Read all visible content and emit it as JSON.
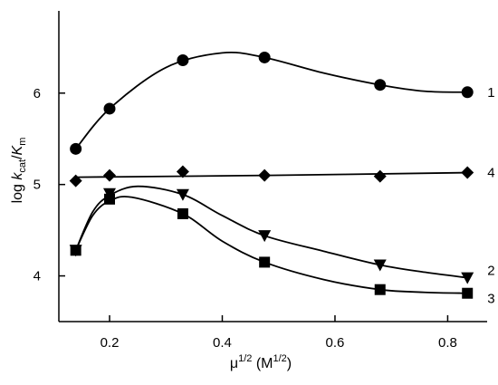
{
  "chart_data": {
    "type": "line",
    "title": "",
    "xlabel": {
      "base": "μ",
      "sup": "1/2",
      "unit_open": " (M",
      "unit_sup": "1/2",
      "unit_close": ")"
    },
    "ylabel": {
      "prefix": "log ",
      "k": "k",
      "k_sub": "cat",
      "slash": "/",
      "K": "K",
      "K_sub": "m"
    },
    "xlim": [
      0.11,
      0.87
    ],
    "ylim": [
      3.5,
      6.9
    ],
    "xticks": [
      0.2,
      0.4,
      0.6,
      0.8
    ],
    "xtick_labels": [
      "0.2",
      "0.4",
      "0.6",
      "0.8"
    ],
    "yticks": [
      4,
      5,
      6
    ],
    "ytick_labels": [
      "4",
      "5",
      "6"
    ],
    "grid": false,
    "series": [
      {
        "name": "1",
        "marker": "circle",
        "x": [
          0.14,
          0.2,
          0.33,
          0.475,
          0.68,
          0.835
        ],
        "y": [
          5.39,
          5.83,
          6.36,
          6.39,
          6.09,
          6.01
        ],
        "curve": [
          [
            0.14,
            5.39
          ],
          [
            0.2,
            5.83
          ],
          [
            0.3,
            6.28
          ],
          [
            0.4,
            6.44
          ],
          [
            0.475,
            6.39
          ],
          [
            0.58,
            6.22
          ],
          [
            0.68,
            6.09
          ],
          [
            0.76,
            6.02
          ],
          [
            0.835,
            6.01
          ]
        ]
      },
      {
        "name": "4",
        "marker": "diamond",
        "x": [
          0.14,
          0.2,
          0.33,
          0.475,
          0.68,
          0.835
        ],
        "y": [
          5.04,
          5.1,
          5.14,
          5.1,
          5.09,
          5.13
        ],
        "curve": [
          [
            0.14,
            5.08
          ],
          [
            0.48,
            5.1
          ],
          [
            0.835,
            5.13
          ]
        ]
      },
      {
        "name": "2",
        "marker": "triangle-down",
        "x": [
          0.14,
          0.2,
          0.33,
          0.475,
          0.68,
          0.835
        ],
        "y": [
          4.28,
          4.9,
          4.89,
          4.44,
          4.12,
          3.98
        ],
        "curve": [
          [
            0.14,
            4.28
          ],
          [
            0.17,
            4.7
          ],
          [
            0.2,
            4.88
          ],
          [
            0.25,
            4.98
          ],
          [
            0.33,
            4.89
          ],
          [
            0.4,
            4.66
          ],
          [
            0.475,
            4.44
          ],
          [
            0.58,
            4.27
          ],
          [
            0.68,
            4.12
          ],
          [
            0.76,
            4.04
          ],
          [
            0.835,
            3.98
          ]
        ]
      },
      {
        "name": "3",
        "marker": "square",
        "x": [
          0.14,
          0.2,
          0.33,
          0.475,
          0.68,
          0.835
        ],
        "y": [
          4.28,
          4.84,
          4.68,
          4.15,
          3.85,
          3.81
        ],
        "curve": [
          [
            0.14,
            4.28
          ],
          [
            0.17,
            4.66
          ],
          [
            0.2,
            4.82
          ],
          [
            0.24,
            4.86
          ],
          [
            0.33,
            4.68
          ],
          [
            0.4,
            4.38
          ],
          [
            0.475,
            4.15
          ],
          [
            0.58,
            3.96
          ],
          [
            0.68,
            3.85
          ],
          [
            0.76,
            3.82
          ],
          [
            0.835,
            3.81
          ]
        ]
      }
    ]
  }
}
